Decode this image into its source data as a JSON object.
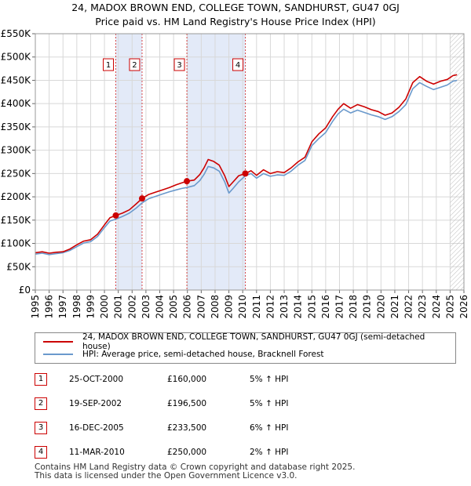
{
  "title_line1": "24, MADOX BROWN END, COLLEGE TOWN, SANDHURST, GU47 0GJ",
  "title_line2": "Price paid vs. HM Land Registry's House Price Index (HPI)",
  "chart_data": {
    "type": "line",
    "ylim": [
      0,
      550000
    ],
    "xlim": [
      1995,
      2026
    ],
    "y_ticks": [
      {
        "value": 0,
        "label": "£0"
      },
      {
        "value": 50000,
        "label": "£50K"
      },
      {
        "value": 100000,
        "label": "£100K"
      },
      {
        "value": 150000,
        "label": "£150K"
      },
      {
        "value": 200000,
        "label": "£200K"
      },
      {
        "value": 250000,
        "label": "£250K"
      },
      {
        "value": 300000,
        "label": "£300K"
      },
      {
        "value": 350000,
        "label": "£350K"
      },
      {
        "value": 400000,
        "label": "£400K"
      },
      {
        "value": 450000,
        "label": "£450K"
      },
      {
        "value": 500000,
        "label": "£500K"
      },
      {
        "value": 550000,
        "label": "£550K"
      }
    ],
    "x_ticks": [
      "1995",
      "1996",
      "1997",
      "1998",
      "1999",
      "2000",
      "2001",
      "2002",
      "2003",
      "2004",
      "2005",
      "2006",
      "2007",
      "2008",
      "2009",
      "2010",
      "2011",
      "2012",
      "2013",
      "2014",
      "2015",
      "2016",
      "2017",
      "2018",
      "2019",
      "2020",
      "2021",
      "2022",
      "2023",
      "2024",
      "2025",
      "2026"
    ],
    "shaded_ranges": [
      [
        2000.82,
        2002.72
      ],
      [
        2005.96,
        2010.19
      ]
    ],
    "future_hatch_from": 2025.0,
    "markers": [
      {
        "label": "1",
        "x": 2000.82,
        "y": 160000
      },
      {
        "label": "2",
        "x": 2002.72,
        "y": 196500
      },
      {
        "label": "3",
        "x": 2005.96,
        "y": 233500
      },
      {
        "label": "4",
        "x": 2010.19,
        "y": 250000
      }
    ],
    "series": [
      {
        "name": "24, MADOX BROWN END, COLLEGE TOWN, SANDHURST, GU47 0GJ (semi-detached house)",
        "color": "#cc0000",
        "points": [
          [
            1995.0,
            80000
          ],
          [
            1995.5,
            82000
          ],
          [
            1996.0,
            79000
          ],
          [
            1996.5,
            81000
          ],
          [
            1997.0,
            82000
          ],
          [
            1997.5,
            88000
          ],
          [
            1998.0,
            97000
          ],
          [
            1998.5,
            105000
          ],
          [
            1999.0,
            108000
          ],
          [
            1999.5,
            120000
          ],
          [
            2000.0,
            140000
          ],
          [
            2000.4,
            155000
          ],
          [
            2000.82,
            160000
          ],
          [
            2001.3,
            165000
          ],
          [
            2001.8,
            172000
          ],
          [
            2002.3,
            185000
          ],
          [
            2002.72,
            196500
          ],
          [
            2003.2,
            205000
          ],
          [
            2003.7,
            210000
          ],
          [
            2004.2,
            215000
          ],
          [
            2004.7,
            220000
          ],
          [
            2005.2,
            226000
          ],
          [
            2005.6,
            230000
          ],
          [
            2005.96,
            233500
          ],
          [
            2006.5,
            236000
          ],
          [
            2006.9,
            248000
          ],
          [
            2007.2,
            262000
          ],
          [
            2007.5,
            280000
          ],
          [
            2007.9,
            276000
          ],
          [
            2008.3,
            268000
          ],
          [
            2008.7,
            245000
          ],
          [
            2009.0,
            222000
          ],
          [
            2009.3,
            232000
          ],
          [
            2009.7,
            245000
          ],
          [
            2010.19,
            250000
          ],
          [
            2010.6,
            256000
          ],
          [
            2011.0,
            246000
          ],
          [
            2011.5,
            258000
          ],
          [
            2012.0,
            250000
          ],
          [
            2012.5,
            254000
          ],
          [
            2013.0,
            252000
          ],
          [
            2013.5,
            262000
          ],
          [
            2014.0,
            275000
          ],
          [
            2014.5,
            285000
          ],
          [
            2015.0,
            318000
          ],
          [
            2015.5,
            335000
          ],
          [
            2016.0,
            348000
          ],
          [
            2016.5,
            372000
          ],
          [
            2016.9,
            388000
          ],
          [
            2017.3,
            400000
          ],
          [
            2017.8,
            390000
          ],
          [
            2018.3,
            398000
          ],
          [
            2018.8,
            393000
          ],
          [
            2019.3,
            387000
          ],
          [
            2019.8,
            383000
          ],
          [
            2020.3,
            375000
          ],
          [
            2020.8,
            380000
          ],
          [
            2021.3,
            392000
          ],
          [
            2021.8,
            410000
          ],
          [
            2022.3,
            445000
          ],
          [
            2022.8,
            458000
          ],
          [
            2023.3,
            448000
          ],
          [
            2023.8,
            442000
          ],
          [
            2024.3,
            448000
          ],
          [
            2024.8,
            452000
          ],
          [
            2025.2,
            460000
          ],
          [
            2025.5,
            462000
          ]
        ]
      },
      {
        "name": "HPI: Average price, semi-detached house, Bracknell Forest",
        "color": "#6a99cc",
        "points": [
          [
            1995.0,
            77000
          ],
          [
            1995.5,
            79000
          ],
          [
            1996.0,
            76000
          ],
          [
            1996.5,
            78000
          ],
          [
            1997.0,
            80000
          ],
          [
            1997.5,
            85000
          ],
          [
            1998.0,
            93000
          ],
          [
            1998.5,
            101000
          ],
          [
            1999.0,
            104000
          ],
          [
            1999.5,
            115000
          ],
          [
            2000.0,
            134000
          ],
          [
            2000.4,
            148000
          ],
          [
            2000.82,
            152000
          ],
          [
            2001.3,
            158000
          ],
          [
            2001.8,
            165000
          ],
          [
            2002.3,
            176000
          ],
          [
            2002.72,
            187000
          ],
          [
            2003.2,
            196000
          ],
          [
            2003.7,
            201000
          ],
          [
            2004.2,
            206000
          ],
          [
            2004.7,
            211000
          ],
          [
            2005.2,
            215000
          ],
          [
            2005.6,
            218000
          ],
          [
            2005.96,
            220000
          ],
          [
            2006.5,
            224000
          ],
          [
            2006.9,
            235000
          ],
          [
            2007.2,
            248000
          ],
          [
            2007.5,
            265000
          ],
          [
            2007.9,
            262000
          ],
          [
            2008.3,
            255000
          ],
          [
            2008.7,
            232000
          ],
          [
            2009.0,
            208000
          ],
          [
            2009.3,
            218000
          ],
          [
            2009.7,
            232000
          ],
          [
            2010.19,
            245000
          ],
          [
            2010.6,
            250000
          ],
          [
            2011.0,
            240000
          ],
          [
            2011.5,
            250000
          ],
          [
            2012.0,
            244000
          ],
          [
            2012.5,
            247000
          ],
          [
            2013.0,
            246000
          ],
          [
            2013.5,
            255000
          ],
          [
            2014.0,
            268000
          ],
          [
            2014.5,
            278000
          ],
          [
            2015.0,
            310000
          ],
          [
            2015.5,
            325000
          ],
          [
            2016.0,
            338000
          ],
          [
            2016.5,
            362000
          ],
          [
            2016.9,
            378000
          ],
          [
            2017.3,
            388000
          ],
          [
            2017.8,
            380000
          ],
          [
            2018.3,
            386000
          ],
          [
            2018.8,
            381000
          ],
          [
            2019.3,
            376000
          ],
          [
            2019.8,
            372000
          ],
          [
            2020.3,
            366000
          ],
          [
            2020.8,
            372000
          ],
          [
            2021.3,
            383000
          ],
          [
            2021.8,
            398000
          ],
          [
            2022.3,
            432000
          ],
          [
            2022.8,
            445000
          ],
          [
            2023.3,
            437000
          ],
          [
            2023.8,
            430000
          ],
          [
            2024.3,
            435000
          ],
          [
            2024.8,
            440000
          ],
          [
            2025.2,
            448000
          ],
          [
            2025.5,
            450000
          ]
        ]
      }
    ]
  },
  "legend": {
    "property_label": "24, MADOX BROWN END, COLLEGE TOWN, SANDHURST, GU47 0GJ (semi-detached house)",
    "hpi_label": "HPI: Average price, semi-detached house, Bracknell Forest",
    "property_color": "#cc0000",
    "hpi_color": "#6a99cc"
  },
  "sales": [
    {
      "num": "1",
      "date": "25-OCT-2000",
      "price": "£160,000",
      "hpi": "5% ↑ HPI"
    },
    {
      "num": "2",
      "date": "19-SEP-2002",
      "price": "£196,500",
      "hpi": "5% ↑ HPI"
    },
    {
      "num": "3",
      "date": "16-DEC-2005",
      "price": "£233,500",
      "hpi": "6% ↑ HPI"
    },
    {
      "num": "4",
      "date": "11-MAR-2010",
      "price": "£250,000",
      "hpi": "2% ↑ HPI"
    }
  ],
  "footer_line1": "Contains HM Land Registry data © Crown copyright and database right 2025.",
  "footer_line2": "This data is licensed under the Open Government Licence v3.0."
}
